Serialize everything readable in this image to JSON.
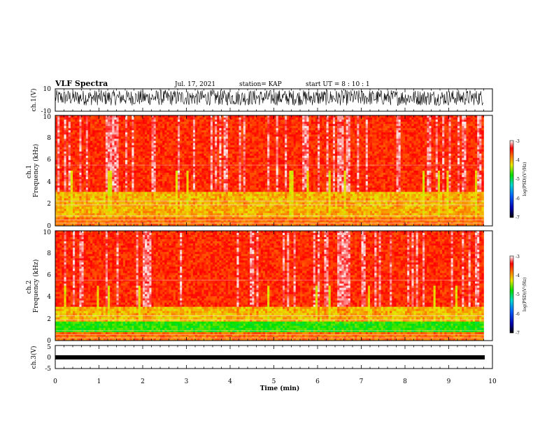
{
  "header": {
    "title": "VLF Spectra",
    "date": "Jul. 17, 2021",
    "station": "station= KAP",
    "start": "start  UT =   8 : 10 : 1"
  },
  "chart_data": [
    {
      "type": "line",
      "panel": "ch1-waveform",
      "ylabel": "ch.1(V)",
      "ylim": [
        -10,
        10
      ],
      "y_ticks": [
        "10",
        "-10"
      ],
      "xlim": [
        0,
        10
      ],
      "style": "dense black oscillating trace spanning about -6 to 9 V"
    },
    {
      "type": "heatmap",
      "panel": "ch1-spectrogram",
      "ylabel": "ch.1\nFrequency  (kHz)",
      "ylim": [
        0,
        10
      ],
      "y_ticks": [
        "0",
        "2",
        "4",
        "6",
        "8",
        "10"
      ],
      "xlim": [
        0,
        9.8
      ],
      "colorbar": {
        "label": "log(PSD)(V²/Hz)",
        "range": [
          -7,
          -3
        ],
        "ticks": [
          "-3",
          "-4",
          "-5",
          "-6",
          "-7"
        ]
      },
      "features": {
        "mean_level_above_2.5kHz": -3.5,
        "yellow_band_kHz": [
          1.0,
          3.0
        ],
        "dominant_color": "red"
      }
    },
    {
      "type": "heatmap",
      "panel": "ch2-spectrogram",
      "ylabel": "ch.2\nFrequency  (kHz)",
      "ylim": [
        0,
        10
      ],
      "y_ticks": [
        "0",
        "2",
        "4",
        "6",
        "8",
        "10"
      ],
      "xlim": [
        0,
        9.8
      ],
      "colorbar": {
        "label": "log(PSD)(V²/Hz)",
        "range": [
          -7,
          -3
        ],
        "ticks": [
          "-3",
          "-4",
          "-5",
          "-6",
          "-7"
        ]
      },
      "features": {
        "mean_level_above_2.5kHz": -3.5,
        "green_band_kHz": [
          0.8,
          1.8
        ],
        "yellow_band_kHz": [
          1.8,
          3.0
        ],
        "dominant_color": "red"
      }
    },
    {
      "type": "line",
      "panel": "ch3-waveform",
      "ylabel": "ch.3(V)",
      "ylim": [
        -5,
        5
      ],
      "y_ticks": [
        "5",
        "0",
        "-5"
      ],
      "xlim": [
        0,
        10
      ],
      "style": "thin dense black band near -1 V"
    }
  ],
  "xaxis": {
    "xlabel": "Time  (min)",
    "ticks": [
      "0",
      "1",
      "2",
      "3",
      "4",
      "5",
      "6",
      "7",
      "8",
      "9",
      "10"
    ]
  }
}
